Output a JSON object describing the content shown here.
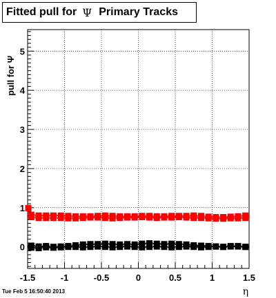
{
  "title": {
    "prefix": "Fitted pull for",
    "symbol": "Ψ",
    "suffix": "Primary Tracks"
  },
  "timestamp": "Tue Feb  5 16:50:40 2013",
  "chart_data": {
    "type": "scatter",
    "title": "Fitted pull for Ψ Primary Tracks",
    "xlabel": "η",
    "ylabel": "pull for Ψ",
    "xlim": [
      -1.5,
      1.5
    ],
    "ylim": [
      -0.55,
      5.55
    ],
    "x_ticks": [
      -1.5,
      -1,
      -0.5,
      0,
      0.5,
      1,
      1.5
    ],
    "x_tick_labels": [
      "-1.5",
      "-1",
      "-0.5",
      "0",
      "0.5",
      "1",
      "1.5"
    ],
    "y_ticks": [
      0,
      1,
      2,
      3,
      4,
      5
    ],
    "y_tick_labels": [
      "0",
      "1",
      "2",
      "3",
      "4",
      "5"
    ],
    "grid": true,
    "colors": {
      "black_series": "#000000",
      "red_series": "#ff0000"
    },
    "x": [
      -1.45,
      -1.35,
      -1.25,
      -1.15,
      -1.05,
      -0.95,
      -0.85,
      -0.75,
      -0.65,
      -0.55,
      -0.45,
      -0.35,
      -0.25,
      -0.15,
      -0.05,
      0.05,
      0.15,
      0.25,
      0.35,
      0.45,
      0.55,
      0.65,
      0.75,
      0.85,
      0.95,
      1.05,
      1.15,
      1.25,
      1.35,
      1.45
    ],
    "series": [
      {
        "values": [
          0.03,
          0.01,
          0.02,
          0.0,
          0.01,
          0.02,
          0.04,
          0.06,
          0.07,
          0.07,
          0.08,
          0.07,
          0.06,
          0.07,
          0.06,
          0.08,
          0.09,
          0.08,
          0.07,
          0.08,
          0.07,
          0.06,
          0.04,
          0.03,
          0.02,
          0.01,
          0.0,
          0.01,
          0.02,
          0.0
        ]
      },
      {
        "values": [
          -0.02,
          -0.03,
          -0.01,
          -0.02,
          -0.01,
          0.0,
          0.0,
          -0.01,
          0.0,
          0.01,
          0.0,
          -0.01,
          0.0,
          0.01,
          0.0,
          -0.01,
          0.0,
          0.01,
          0.0,
          -0.01,
          0.0,
          0.01,
          0.0,
          -0.01,
          0.0,
          0.01,
          0.0,
          0.02,
          0.01,
          0.0
        ]
      },
      {
        "values": [
          0.82,
          0.8,
          0.8,
          0.8,
          0.8,
          0.79,
          0.78,
          0.78,
          0.78,
          0.79,
          0.8,
          0.79,
          0.78,
          0.78,
          0.78,
          0.79,
          0.79,
          0.78,
          0.78,
          0.79,
          0.79,
          0.79,
          0.8,
          0.79,
          0.77,
          0.76,
          0.76,
          0.77,
          0.78,
          0.8
        ]
      },
      {
        "values": [
          0.76,
          0.74,
          0.74,
          0.74,
          0.74,
          0.73,
          0.73,
          0.74,
          0.75,
          0.75,
          0.74,
          0.73,
          0.74,
          0.75,
          0.75,
          0.76,
          0.75,
          0.74,
          0.75,
          0.75,
          0.76,
          0.75,
          0.74,
          0.74,
          0.73,
          0.72,
          0.72,
          0.73,
          0.73,
          0.74
        ]
      }
    ],
    "extra_points": [
      {
        "x": -1.49,
        "y": 0.99
      }
    ]
  }
}
